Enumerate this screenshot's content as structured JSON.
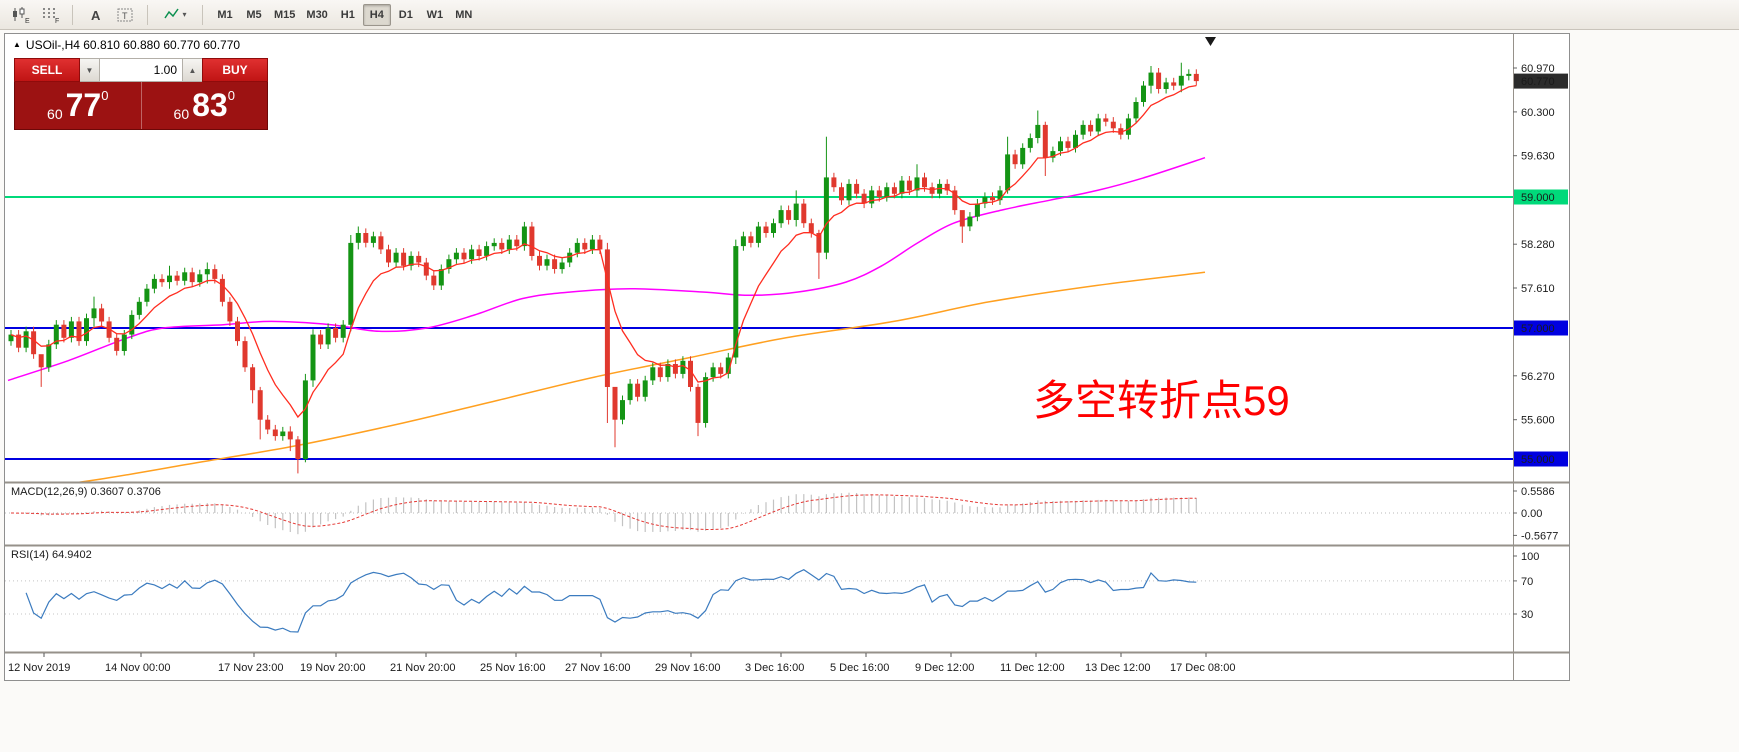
{
  "toolbar": {
    "icons": [
      {
        "name": "candlestick-chart-icon",
        "badge": "E"
      },
      {
        "name": "grid-icon",
        "badge": "F"
      },
      {
        "name": "text-label-icon",
        "glyph": "A"
      },
      {
        "name": "text-box-icon",
        "glyph": "T"
      },
      {
        "name": "indicators-dropdown-icon",
        "caret": "▾"
      }
    ],
    "timeframes": [
      {
        "label": "M1",
        "active": false
      },
      {
        "label": "M5",
        "active": false
      },
      {
        "label": "M15",
        "active": false
      },
      {
        "label": "M30",
        "active": false
      },
      {
        "label": "H1",
        "active": false
      },
      {
        "label": "H4",
        "active": true
      },
      {
        "label": "D1",
        "active": false
      },
      {
        "label": "W1",
        "active": false
      },
      {
        "label": "MN",
        "active": false
      }
    ]
  },
  "chart": {
    "symbol_header": "USOil-,H4 60.810 60.880 60.770 60.770",
    "expand_glyph": "▲",
    "annotation": "多空转折点59",
    "trade_panel": {
      "sell_label": "SELL",
      "buy_label": "BUY",
      "volume": "1.00",
      "vol_down_glyph": "▼",
      "vol_up_glyph": "▲",
      "sell_prefix": "60",
      "sell_big": "77",
      "sell_sup": "0",
      "buy_prefix": "60",
      "buy_big": "83",
      "buy_sup": "0"
    }
  },
  "chart_data": {
    "type": "candlestick",
    "symbol": "USOil-",
    "timeframe": "H4",
    "up_color": "#149414",
    "down_color": "#e0392e",
    "first_open": 56.8,
    "default_wick": 0.07,
    "closes": [
      56.9,
      56.7,
      56.95,
      56.6,
      56.4,
      56.75,
      57.05,
      56.85,
      57.1,
      56.8,
      57.15,
      57.3,
      57.1,
      56.85,
      56.65,
      56.9,
      57.2,
      57.4,
      57.6,
      57.75,
      57.7,
      57.8,
      57.72,
      57.85,
      57.7,
      57.82,
      57.9,
      57.75,
      57.4,
      57.1,
      56.8,
      56.4,
      56.05,
      55.6,
      55.45,
      55.35,
      55.42,
      55.3,
      55.0,
      56.2,
      56.9,
      56.75,
      57.0,
      56.85,
      57.05,
      58.3,
      58.45,
      58.3,
      58.4,
      58.2,
      58.0,
      58.15,
      57.95,
      58.1,
      58.0,
      57.8,
      57.65,
      57.9,
      58.05,
      58.15,
      58.05,
      58.2,
      58.1,
      58.25,
      58.3,
      58.2,
      58.35,
      58.25,
      58.55,
      58.1,
      57.95,
      58.05,
      57.9,
      58.0,
      58.15,
      58.3,
      58.2,
      58.35,
      58.2,
      56.1,
      55.6,
      55.9,
      56.15,
      55.95,
      56.2,
      56.4,
      56.25,
      56.45,
      56.3,
      56.5,
      56.1,
      55.55,
      56.25,
      56.4,
      56.3,
      56.55,
      58.25,
      58.4,
      58.3,
      58.55,
      58.45,
      58.6,
      58.8,
      58.65,
      58.9,
      58.6,
      58.45,
      58.15,
      59.3,
      59.15,
      58.95,
      59.2,
      59.05,
      58.9,
      59.1,
      59.0,
      59.15,
      59.05,
      59.25,
      59.1,
      59.3,
      59.15,
      59.05,
      59.2,
      59.1,
      58.8,
      58.55,
      58.7,
      58.9,
      59.0,
      58.95,
      59.1,
      59.65,
      59.5,
      59.75,
      59.9,
      60.1,
      59.6,
      59.7,
      59.85,
      59.75,
      59.95,
      60.1,
      60.0,
      60.2,
      60.15,
      60.05,
      59.95,
      60.2,
      60.45,
      60.7,
      60.9,
      60.65,
      60.75,
      60.7,
      60.85,
      60.88,
      60.77
    ],
    "wick_overrides": {
      "4": [
        56.55,
        56.1
      ],
      "11": [
        57.48,
        57.02
      ],
      "21": [
        57.95,
        57.6
      ],
      "26": [
        58.0,
        57.68
      ],
      "32": [
        56.45,
        55.85
      ],
      "33": [
        56.1,
        55.3
      ],
      "37": [
        55.5,
        55.12
      ],
      "38": [
        55.35,
        54.78
      ],
      "39": [
        56.3,
        54.95
      ],
      "40": [
        56.98,
        56.1
      ],
      "45": [
        58.42,
        56.95
      ],
      "46": [
        58.55,
        58.2
      ],
      "68": [
        58.62,
        58.18
      ],
      "79": [
        58.3,
        55.55
      ],
      "80": [
        55.95,
        55.18
      ],
      "91": [
        56.15,
        55.35
      ],
      "96": [
        58.35,
        56.45
      ],
      "104": [
        59.1,
        58.55
      ],
      "107": [
        58.5,
        57.75
      ],
      "108": [
        59.92,
        58.05
      ],
      "120": [
        59.5,
        59.0
      ],
      "126": [
        58.78,
        58.3
      ],
      "132": [
        59.92,
        59.05
      ],
      "136": [
        60.32,
        59.82
      ],
      "137": [
        60.15,
        59.32
      ],
      "151": [
        61.0,
        60.58
      ],
      "155": [
        61.05,
        60.6
      ]
    },
    "hlines": [
      {
        "price": 59.0,
        "label": "59.000",
        "color": "#00d97a",
        "text_color": "#00200e"
      },
      {
        "price": 57.0,
        "label": "57.000",
        "color": "#0000e0",
        "text_color": "#ffffff"
      },
      {
        "price": 55.0,
        "label": "55.000",
        "color": "#0000e0",
        "text_color": "#ffffff"
      }
    ],
    "current_price": {
      "label": "60.770",
      "price": 60.77
    },
    "price_scale": [
      {
        "label": "60.970",
        "price": 60.97
      },
      {
        "label": "60.300",
        "price": 60.3
      },
      {
        "label": "59.630",
        "price": 59.63
      },
      {
        "label": "58.280",
        "price": 58.28
      },
      {
        "label": "57.610",
        "price": 57.61
      },
      {
        "label": "56.270",
        "price": 56.27
      },
      {
        "label": "55.600",
        "price": 55.6
      }
    ],
    "ma": {
      "fast": {
        "color": "#ff2d20",
        "period": 8
      },
      "mid": {
        "color": "#ff00ff",
        "keyframes": [
          [
            0.0,
            56.2
          ],
          [
            0.05,
            56.5
          ],
          [
            0.1,
            56.85
          ],
          [
            0.13,
            57.0
          ],
          [
            0.18,
            57.05
          ],
          [
            0.22,
            57.1
          ],
          [
            0.27,
            57.05
          ],
          [
            0.31,
            56.95
          ],
          [
            0.35,
            57.0
          ],
          [
            0.39,
            57.2
          ],
          [
            0.43,
            57.45
          ],
          [
            0.47,
            57.55
          ],
          [
            0.52,
            57.6
          ],
          [
            0.58,
            57.55
          ],
          [
            0.62,
            57.5
          ],
          [
            0.66,
            57.55
          ],
          [
            0.7,
            57.7
          ],
          [
            0.73,
            57.95
          ],
          [
            0.76,
            58.3
          ],
          [
            0.79,
            58.6
          ],
          [
            0.83,
            58.8
          ],
          [
            0.87,
            58.95
          ],
          [
            0.91,
            59.1
          ],
          [
            0.95,
            59.3
          ],
          [
            1.0,
            59.6
          ]
        ]
      },
      "slow": {
        "color": "#ffa020",
        "keyframes": [
          [
            0.0,
            54.5
          ],
          [
            0.08,
            54.7
          ],
          [
            0.16,
            54.95
          ],
          [
            0.24,
            55.2
          ],
          [
            0.33,
            55.55
          ],
          [
            0.41,
            55.9
          ],
          [
            0.49,
            56.25
          ],
          [
            0.57,
            56.55
          ],
          [
            0.65,
            56.85
          ],
          [
            0.74,
            57.1
          ],
          [
            0.82,
            57.4
          ],
          [
            0.91,
            57.65
          ],
          [
            1.0,
            57.85
          ]
        ]
      }
    },
    "macd": {
      "title": "MACD(12,26,9) 0.3607 0.3706",
      "fast": 12,
      "slow": 26,
      "signal": 9,
      "scale_labels": [
        "0.5586",
        "0.00",
        "-0.5677"
      ],
      "scale_values": [
        0.5586,
        0,
        -0.5677
      ],
      "hist_color": "#c3c3c3",
      "signal_color": "#e53935"
    },
    "rsi": {
      "title": "RSI(14) 64.9402",
      "period": 14,
      "levels": [
        70,
        30
      ],
      "scale_labels": [
        "100",
        "70",
        "30"
      ],
      "scale_values": [
        100,
        70,
        30
      ],
      "color": "#3b7bbf"
    },
    "x_axis": [
      [
        "12 Nov 2019",
        3
      ],
      [
        "14 Nov 00:00",
        100
      ],
      [
        "17 Nov 23:00",
        213
      ],
      [
        "19 Nov 20:00",
        295
      ],
      [
        "21 Nov 20:00",
        385
      ],
      [
        "25 Nov 16:00",
        475
      ],
      [
        "27 Nov 16:00",
        560
      ],
      [
        "29 Nov 16:00",
        650
      ],
      [
        "3 Dec 16:00",
        740
      ],
      [
        "5 Dec 16:00",
        825
      ],
      [
        "9 Dec 12:00",
        910
      ],
      [
        "11 Dec 12:00",
        995
      ],
      [
        "13 Dec 12:00",
        1080
      ],
      [
        "17 Dec 08:00",
        1165
      ]
    ]
  }
}
